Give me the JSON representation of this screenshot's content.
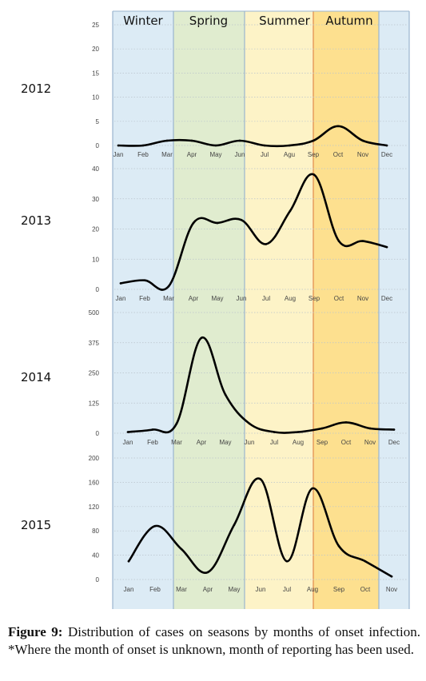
{
  "caption": {
    "label": "Figure 9:",
    "text": "Distribution of cases on seasons by months of onset infection. *Where the month of onset is unknown, month of reporting has been used."
  },
  "seasons": [
    {
      "name": "Winter",
      "color": "#dcebf5"
    },
    {
      "name": "Spring",
      "color": "#e0eccf"
    },
    {
      "name": "Summer",
      "color": "#fdf3c7"
    },
    {
      "name": "Autumn",
      "color": "#fde08f"
    },
    {
      "name": "",
      "color": "#dcebf5"
    }
  ],
  "chart_data": [
    {
      "type": "line",
      "title": "2012",
      "categories": [
        "Jan",
        "Feb",
        "Mar",
        "Apr",
        "May",
        "Jun",
        "Jul",
        "Agu",
        "Sep",
        "Oct",
        "Nov",
        "Dec"
      ],
      "values": [
        0,
        0,
        1,
        1,
        0,
        1,
        0,
        0,
        1,
        4,
        1,
        0
      ],
      "yticks": [
        0,
        5,
        10,
        15,
        20,
        25
      ],
      "ylim": [
        0,
        25
      ]
    },
    {
      "type": "line",
      "title": "2013",
      "categories": [
        "Jan",
        "Feb",
        "Mar",
        "Apr",
        "May",
        "Jun",
        "Jul",
        "Aug",
        "Sep",
        "Oct",
        "Nov",
        "Dec"
      ],
      "values": [
        2,
        3,
        1,
        22,
        22,
        23,
        15,
        26,
        38,
        16,
        16,
        14
      ],
      "yticks": [
        0,
        10,
        20,
        30,
        40
      ],
      "ylim": [
        0,
        40
      ]
    },
    {
      "type": "line",
      "title": "2014",
      "categories": [
        "Jan",
        "Feb",
        "Mar",
        "Apr",
        "May",
        "Jun",
        "Jul",
        "Aug",
        "Sep",
        "Oct",
        "Nov",
        "Dec"
      ],
      "values": [
        5,
        15,
        40,
        395,
        160,
        40,
        5,
        5,
        20,
        45,
        20,
        15
      ],
      "yticks": [
        0,
        125,
        250,
        375,
        500
      ],
      "ylim": [
        0,
        500
      ]
    },
    {
      "type": "line",
      "title": "2015",
      "categories": [
        "Jan",
        "Feb",
        "Mar",
        "Apr",
        "May",
        "Jun",
        "Jul",
        "Aug",
        "Sep",
        "Oct",
        "Nov"
      ],
      "values": [
        30,
        88,
        50,
        12,
        90,
        165,
        30,
        150,
        55,
        30,
        5
      ],
      "yticks": [
        0,
        40,
        80,
        120,
        160,
        200
      ],
      "ylim": [
        0,
        200
      ]
    }
  ]
}
